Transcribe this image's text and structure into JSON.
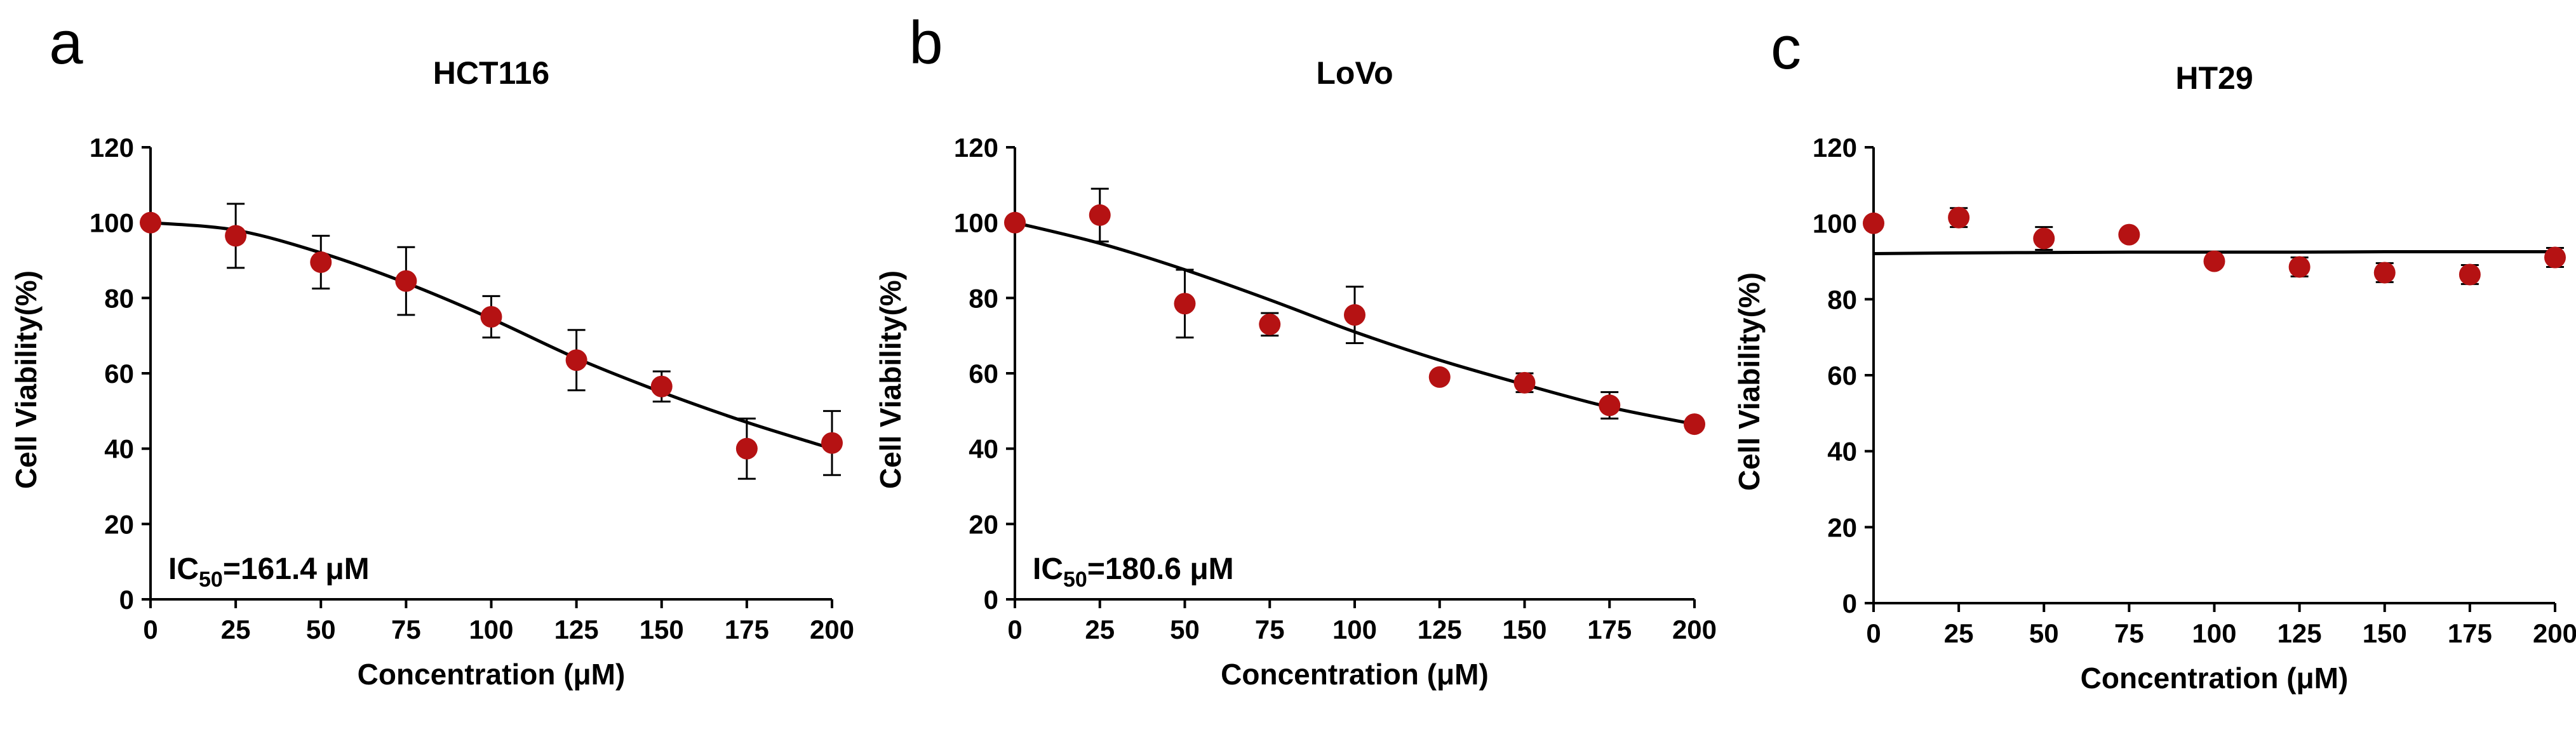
{
  "figure_panels": [
    "a",
    "b",
    "c"
  ],
  "colors": {
    "point": "#b51213",
    "line": "#000000"
  },
  "chart_data": [
    {
      "panel": "a",
      "type": "scatter",
      "title": "HCT116",
      "xlabel": "Concentration (μM)",
      "ylabel": "Cell Viability(%)",
      "xlim": [
        0,
        200
      ],
      "ylim": [
        0,
        120
      ],
      "xticks": [
        0,
        25,
        50,
        75,
        100,
        125,
        150,
        175,
        200
      ],
      "yticks": [
        0,
        20,
        40,
        60,
        80,
        100,
        120
      ],
      "x": [
        0,
        25,
        50,
        75,
        100,
        125,
        150,
        175,
        200
      ],
      "y": [
        100,
        96.5,
        89.5,
        84.5,
        75,
        63.5,
        56.5,
        40,
        41.5
      ],
      "error": [
        0,
        8.5,
        7,
        9,
        5.5,
        8,
        4,
        8,
        8.5
      ],
      "fit": {
        "x": [
          0,
          25,
          50,
          75,
          100,
          125,
          150,
          175,
          200
        ],
        "y": [
          100,
          98,
          92,
          84,
          74.5,
          64,
          55,
          47,
          40
        ]
      },
      "annotation": {
        "prefix": "IC",
        "sub": "50",
        "suffix": "=161.4 μM"
      }
    },
    {
      "panel": "b",
      "type": "scatter",
      "title": "LoVo",
      "xlabel": "Concentration (μM)",
      "ylabel": "Cell Viability(%)",
      "xlim": [
        0,
        200
      ],
      "ylim": [
        0,
        120
      ],
      "xticks": [
        0,
        25,
        50,
        75,
        100,
        125,
        150,
        175,
        200
      ],
      "yticks": [
        0,
        20,
        40,
        60,
        80,
        100,
        120
      ],
      "x": [
        0,
        25,
        50,
        75,
        100,
        125,
        150,
        175,
        200
      ],
      "y": [
        100,
        102,
        78.5,
        73,
        75.5,
        59,
        57.5,
        51.5,
        46.5
      ],
      "error": [
        0,
        7,
        9,
        3,
        7.5,
        0,
        2.5,
        3.5,
        0
      ],
      "fit": {
        "x": [
          0,
          25,
          50,
          75,
          100,
          125,
          150,
          175,
          200
        ],
        "y": [
          100,
          94.5,
          87.5,
          79.5,
          71,
          63.5,
          57,
          51,
          46.5
        ]
      },
      "annotation": {
        "prefix": "IC",
        "sub": "50",
        "suffix": "=180.6 μM"
      }
    },
    {
      "panel": "c",
      "type": "scatter",
      "title": "HT29",
      "xlabel": "Concentration (μM)",
      "ylabel": "Cell Viability(%)",
      "xlim": [
        0,
        200
      ],
      "ylim": [
        0,
        120
      ],
      "xticks": [
        0,
        25,
        50,
        75,
        100,
        125,
        150,
        175,
        200
      ],
      "yticks": [
        0,
        20,
        40,
        60,
        80,
        100,
        120
      ],
      "x": [
        0,
        25,
        50,
        75,
        100,
        125,
        150,
        175,
        200
      ],
      "y": [
        100,
        101.5,
        96,
        97,
        90,
        88.5,
        87,
        86.5,
        91
      ],
      "error": [
        0,
        2.5,
        3,
        0,
        0,
        2.5,
        2.5,
        2.5,
        2.5
      ],
      "fit": {
        "x": [
          0,
          25,
          50,
          75,
          100,
          125,
          150,
          175,
          200
        ],
        "y": [
          92,
          92.2,
          92.3,
          92.4,
          92.4,
          92.4,
          92.5,
          92.5,
          92.5
        ]
      },
      "annotation": null
    }
  ]
}
